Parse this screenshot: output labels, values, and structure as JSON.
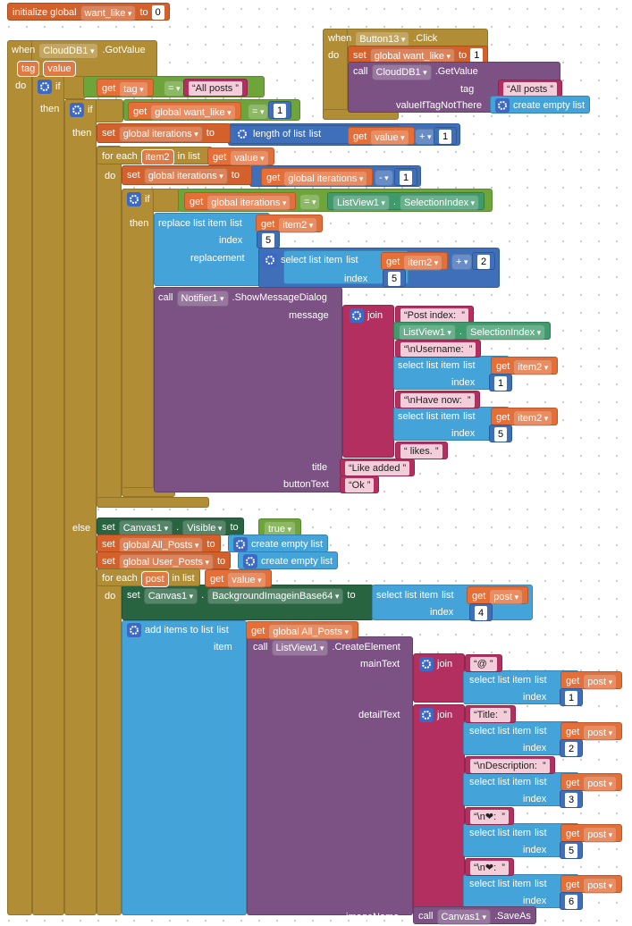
{
  "blocks": [
    [
      "initialize global",
      "want_like",
      "to",
      0
    ],
    [
      "when",
      "CloudDB1",
      ".GotValue"
    ],
    [
      "tag",
      "value"
    ],
    [
      "do"
    ],
    [
      "when",
      "Button13",
      ".Click"
    ],
    [
      "do"
    ],
    [
      "set",
      "global want_like",
      "to",
      1
    ],
    [
      "call",
      "CloudDB1",
      ".GetValue"
    ],
    [
      "tag"
    ],
    [
      "All posts"
    ],
    [
      "valueIfTagNotThere"
    ],
    [
      "create empty list"
    ],
    [
      "if"
    ],
    [
      "get",
      "tag"
    ],
    [
      "="
    ],
    [
      "All posts"
    ],
    [
      "then"
    ],
    [
      "if"
    ],
    [
      "get",
      "global want_like"
    ],
    [
      "="
    ],
    [
      1
    ],
    [
      "then"
    ],
    [
      "set",
      "global iterations",
      "to"
    ],
    [
      "length of list",
      "list"
    ],
    [
      "get",
      "value"
    ],
    [
      "+"
    ],
    [
      1
    ],
    [
      "for each",
      "item2",
      "in list"
    ],
    [
      "get",
      "value"
    ],
    [
      "do"
    ],
    [
      "set",
      "global iterations",
      "to"
    ],
    [
      "get",
      "global iterations"
    ],
    [
      "-"
    ],
    [
      1
    ],
    [
      "if"
    ],
    [
      "get",
      "global iterations"
    ],
    [
      "="
    ],
    [
      "ListView1",
      ".",
      "SelectionIndex"
    ],
    [
      "then"
    ],
    [
      "replace list item",
      "list"
    ],
    [
      "get",
      "item2"
    ],
    [
      "index"
    ],
    [
      5
    ],
    [
      "replacement"
    ],
    [
      "select list item",
      "list"
    ],
    [
      "get",
      "item2"
    ],
    [
      "index"
    ],
    [
      5
    ],
    [
      "+"
    ],
    [
      2
    ],
    [
      "call",
      "Notifier1",
      ".ShowMessageDialog"
    ],
    [
      "message"
    ],
    [
      "join"
    ],
    [
      "Post index: "
    ],
    [
      "ListView1",
      ".",
      "SelectionIndex"
    ],
    [
      "\\nUsername: "
    ],
    [
      "select list item",
      "list"
    ],
    [
      "get",
      "item2"
    ],
    [
      "index"
    ],
    [
      1
    ],
    [
      "\\nHave now: "
    ],
    [
      "select list item",
      "list"
    ],
    [
      "get",
      "item2"
    ],
    [
      "index"
    ],
    [
      5
    ],
    [
      " likes."
    ],
    [
      "title"
    ],
    [
      "Like added"
    ],
    [
      "buttonText"
    ],
    [
      "Ok"
    ],
    [
      "else"
    ],
    [
      "set",
      "Canvas1",
      ".",
      "Visible",
      "to"
    ],
    [
      "true"
    ],
    [
      "set",
      "global All_Posts",
      "to"
    ],
    [
      "create empty list"
    ],
    [
      "set",
      "global User_Posts",
      "to"
    ],
    [
      "create empty list"
    ],
    [
      "for each",
      "post",
      "in list"
    ],
    [
      "get",
      "value"
    ],
    [
      "do"
    ],
    [
      "set",
      "Canvas1",
      ".",
      "BackgroundImageinBase64",
      "to"
    ],
    [
      "select list item",
      "list"
    ],
    [
      "get",
      "post"
    ],
    [
      "index"
    ],
    [
      4
    ],
    [
      "add items to list",
      "list"
    ],
    [
      "get",
      "global All_Posts"
    ],
    [
      "item"
    ],
    [
      "call",
      "ListView1",
      ".CreateElement"
    ],
    [
      "mainText"
    ],
    [
      "join"
    ],
    [
      "@"
    ],
    [
      "select list item",
      "list"
    ],
    [
      "get",
      "post"
    ],
    [
      "index"
    ],
    [
      1
    ],
    [
      "detailText"
    ],
    [
      "join"
    ],
    [
      "Title: "
    ],
    [
      "select list item",
      "list"
    ],
    [
      "get",
      "post"
    ],
    [
      "index"
    ],
    [
      2
    ],
    [
      "\\nDescription: "
    ],
    [
      "select list item",
      "list"
    ],
    [
      "get",
      "post"
    ],
    [
      "index"
    ],
    [
      3
    ],
    [
      "\\n❤: "
    ],
    [
      "select list item",
      "list"
    ],
    [
      "get",
      "post"
    ],
    [
      "index"
    ],
    [
      5
    ],
    [
      "\\n❤: "
    ],
    [
      "select list item",
      "list"
    ],
    [
      "get",
      "post"
    ],
    [
      "index"
    ],
    [
      6
    ],
    [
      "imageName"
    ],
    [
      "call",
      "Canvas1",
      ".SaveAs"
    ]
  ]
}
